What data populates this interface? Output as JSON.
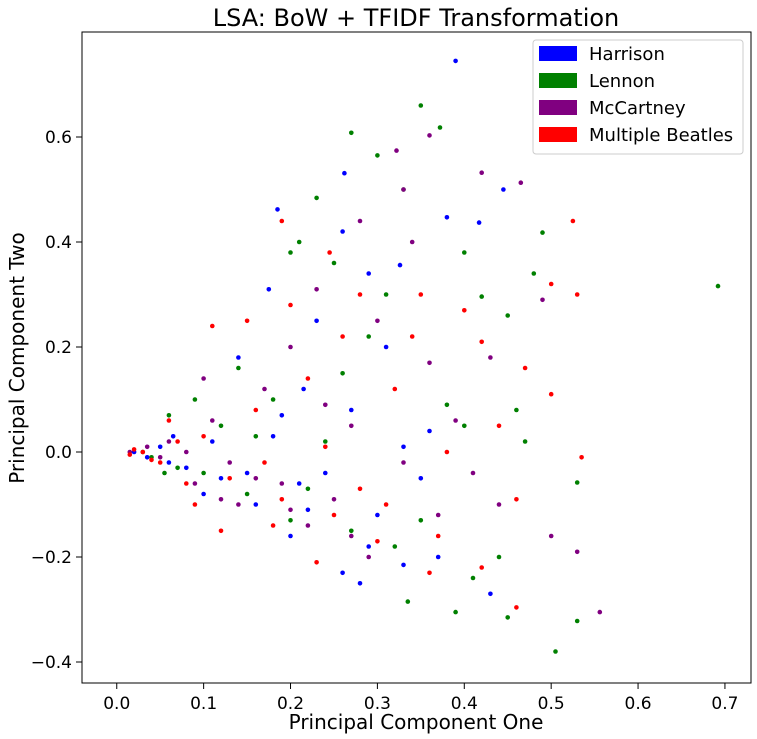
{
  "chart_data": {
    "type": "scatter",
    "title": "LSA: BoW + TFIDF Transformation",
    "xlabel": "Principal Component One",
    "ylabel": "Principal Component Two",
    "xlim": [
      -0.04,
      0.73
    ],
    "ylim": [
      -0.44,
      0.8
    ],
    "xticks": [
      0.0,
      0.1,
      0.2,
      0.3,
      0.4,
      0.5,
      0.6,
      0.7
    ],
    "xtick_labels": [
      "0.0",
      "0.1",
      "0.2",
      "0.3",
      "0.4",
      "0.5",
      "0.6",
      "0.7"
    ],
    "yticks": [
      -0.4,
      -0.2,
      0.0,
      0.2,
      0.4,
      0.6
    ],
    "ytick_labels": [
      "−0.4",
      "−0.2",
      "0.0",
      "0.2",
      "0.4",
      "0.6"
    ],
    "grid": false,
    "legend_position": "top-right",
    "series": [
      {
        "name": "Harrison",
        "color": "#0000ff",
        "points": [
          [
            0.39,
            0.745
          ],
          [
            0.262,
            0.531
          ],
          [
            0.185,
            0.462
          ],
          [
            0.326,
            0.356
          ],
          [
            0.38,
            0.447
          ],
          [
            0.417,
            0.437
          ],
          [
            0.445,
            0.5
          ],
          [
            0.26,
            0.42
          ],
          [
            0.29,
            0.34
          ],
          [
            0.175,
            0.31
          ],
          [
            0.23,
            0.25
          ],
          [
            0.31,
            0.2
          ],
          [
            0.14,
            0.18
          ],
          [
            0.215,
            0.12
          ],
          [
            0.27,
            0.08
          ],
          [
            0.18,
            0.03
          ],
          [
            0.33,
            0.01
          ],
          [
            0.36,
            0.04
          ],
          [
            0.24,
            -0.04
          ],
          [
            0.3,
            -0.12
          ],
          [
            0.33,
            -0.215
          ],
          [
            0.37,
            -0.2
          ],
          [
            0.28,
            -0.25
          ],
          [
            0.2,
            -0.16
          ],
          [
            0.12,
            -0.05
          ],
          [
            0.08,
            -0.03
          ],
          [
            0.06,
            -0.02
          ],
          [
            0.1,
            -0.08
          ],
          [
            0.16,
            -0.1
          ],
          [
            0.05,
            0.01
          ],
          [
            0.43,
            -0.27
          ],
          [
            0.26,
            -0.23
          ],
          [
            0.21,
            -0.06
          ],
          [
            0.15,
            -0.04
          ],
          [
            0.02,
            0.0
          ],
          [
            0.035,
            -0.01
          ],
          [
            0.19,
            0.07
          ],
          [
            0.35,
            -0.05
          ],
          [
            0.29,
            -0.18
          ],
          [
            0.22,
            -0.11
          ],
          [
            0.11,
            0.02
          ],
          [
            0.065,
            0.03
          ]
        ]
      },
      {
        "name": "Lennon",
        "color": "#008000",
        "points": [
          [
            0.35,
            0.66
          ],
          [
            0.372,
            0.618
          ],
          [
            0.27,
            0.608
          ],
          [
            0.3,
            0.565
          ],
          [
            0.692,
            0.316
          ],
          [
            0.23,
            0.484
          ],
          [
            0.33,
            0.5
          ],
          [
            0.2,
            0.38
          ],
          [
            0.25,
            0.36
          ],
          [
            0.4,
            0.38
          ],
          [
            0.42,
            0.296
          ],
          [
            0.49,
            0.418
          ],
          [
            0.48,
            0.34
          ],
          [
            0.45,
            0.26
          ],
          [
            0.46,
            0.08
          ],
          [
            0.44,
            -0.2
          ],
          [
            0.505,
            -0.38
          ],
          [
            0.45,
            -0.315
          ],
          [
            0.39,
            -0.305
          ],
          [
            0.335,
            -0.285
          ],
          [
            0.53,
            -0.058
          ],
          [
            0.53,
            -0.322
          ],
          [
            0.4,
            0.05
          ],
          [
            0.38,
            0.09
          ],
          [
            0.14,
            0.16
          ],
          [
            0.29,
            0.22
          ],
          [
            0.18,
            0.1
          ],
          [
            0.24,
            0.02
          ],
          [
            0.1,
            -0.04
          ],
          [
            0.07,
            -0.03
          ],
          [
            0.04,
            -0.01
          ],
          [
            0.15,
            -0.08
          ],
          [
            0.2,
            -0.13
          ],
          [
            0.27,
            -0.15
          ],
          [
            0.32,
            -0.18
          ],
          [
            0.12,
            0.05
          ],
          [
            0.09,
            0.1
          ],
          [
            0.06,
            0.07
          ],
          [
            0.16,
            0.03
          ],
          [
            0.22,
            -0.07
          ],
          [
            0.35,
            -0.13
          ],
          [
            0.41,
            -0.24
          ],
          [
            0.03,
            0.0
          ],
          [
            0.055,
            -0.04
          ],
          [
            0.26,
            0.15
          ],
          [
            0.31,
            0.3
          ],
          [
            0.21,
            0.4
          ],
          [
            0.47,
            0.02
          ]
        ]
      },
      {
        "name": "McCartney",
        "color": "#800080",
        "points": [
          [
            0.36,
            0.603
          ],
          [
            0.322,
            0.574
          ],
          [
            0.42,
            0.532
          ],
          [
            0.465,
            0.513
          ],
          [
            0.33,
            0.5
          ],
          [
            0.49,
            0.29
          ],
          [
            0.28,
            0.44
          ],
          [
            0.34,
            0.4
          ],
          [
            0.23,
            0.31
          ],
          [
            0.3,
            0.25
          ],
          [
            0.43,
            0.18
          ],
          [
            0.5,
            -0.16
          ],
          [
            0.53,
            -0.19
          ],
          [
            0.556,
            -0.305
          ],
          [
            0.44,
            -0.1
          ],
          [
            0.37,
            -0.12
          ],
          [
            0.25,
            -0.09
          ],
          [
            0.19,
            -0.06
          ],
          [
            0.13,
            -0.02
          ],
          [
            0.08,
            0.0
          ],
          [
            0.05,
            -0.01
          ],
          [
            0.11,
            0.06
          ],
          [
            0.17,
            0.12
          ],
          [
            0.2,
            0.2
          ],
          [
            0.27,
            0.05
          ],
          [
            0.33,
            -0.02
          ],
          [
            0.39,
            0.06
          ],
          [
            0.14,
            -0.1
          ],
          [
            0.22,
            -0.14
          ],
          [
            0.29,
            -0.2
          ],
          [
            0.06,
            0.02
          ],
          [
            0.09,
            -0.06
          ],
          [
            0.12,
            -0.09
          ],
          [
            0.015,
            0.0
          ],
          [
            0.035,
            0.01
          ],
          [
            0.16,
            -0.05
          ],
          [
            0.24,
            0.09
          ],
          [
            0.36,
            0.17
          ],
          [
            0.41,
            -0.04
          ],
          [
            0.2,
            -0.11
          ],
          [
            0.27,
            -0.16
          ],
          [
            0.1,
            0.14
          ]
        ]
      },
      {
        "name": "Multiple Beatles",
        "color": "#ff0000",
        "points": [
          [
            0.525,
            0.44
          ],
          [
            0.53,
            0.3
          ],
          [
            0.5,
            0.32
          ],
          [
            0.245,
            0.38
          ],
          [
            0.19,
            0.44
          ],
          [
            0.28,
            0.3
          ],
          [
            0.35,
            0.3
          ],
          [
            0.4,
            0.27
          ],
          [
            0.42,
            0.21
          ],
          [
            0.47,
            0.16
          ],
          [
            0.5,
            0.11
          ],
          [
            0.535,
            -0.01
          ],
          [
            0.46,
            -0.09
          ],
          [
            0.42,
            -0.22
          ],
          [
            0.46,
            -0.296
          ],
          [
            0.36,
            -0.23
          ],
          [
            0.3,
            -0.17
          ],
          [
            0.23,
            -0.21
          ],
          [
            0.18,
            -0.14
          ],
          [
            0.12,
            -0.15
          ],
          [
            0.08,
            -0.06
          ],
          [
            0.05,
            -0.02
          ],
          [
            0.03,
            0.0
          ],
          [
            0.1,
            0.03
          ],
          [
            0.16,
            0.08
          ],
          [
            0.22,
            0.14
          ],
          [
            0.26,
            0.22
          ],
          [
            0.32,
            0.12
          ],
          [
            0.38,
            0.0
          ],
          [
            0.44,
            0.05
          ],
          [
            0.07,
            0.02
          ],
          [
            0.13,
            -0.05
          ],
          [
            0.19,
            -0.09
          ],
          [
            0.25,
            -0.12
          ],
          [
            0.31,
            -0.1
          ],
          [
            0.04,
            -0.015
          ],
          [
            0.02,
            0.005
          ],
          [
            0.11,
            0.24
          ],
          [
            0.15,
            0.25
          ],
          [
            0.2,
            0.28
          ],
          [
            0.34,
            0.22
          ],
          [
            0.28,
            -0.07
          ],
          [
            0.09,
            -0.1
          ],
          [
            0.015,
            -0.005
          ],
          [
            0.06,
            0.06
          ],
          [
            0.17,
            -0.02
          ],
          [
            0.24,
            0.01
          ],
          [
            0.37,
            -0.16
          ]
        ]
      }
    ]
  }
}
